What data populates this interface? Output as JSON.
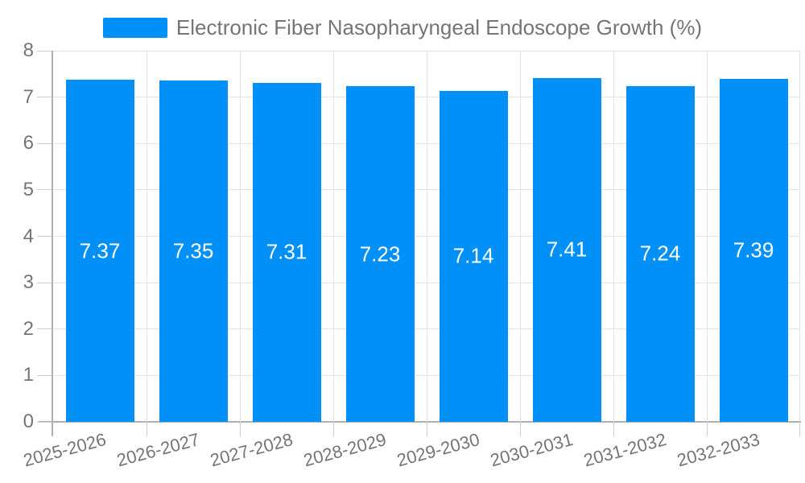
{
  "chart_data": {
    "type": "bar",
    "title": "Electronic Fiber Nasopharyngeal Endoscope Growth (%)",
    "categories": [
      "2025-2026",
      "2026-2027",
      "2027-2028",
      "2028-2029",
      "2029-2030",
      "2030-2031",
      "2031-2032",
      "2032-2033"
    ],
    "values": [
      7.37,
      7.35,
      7.31,
      7.23,
      7.14,
      7.41,
      7.24,
      7.39
    ],
    "value_labels": [
      "7.37",
      "7.35",
      "7.31",
      "7.23",
      "7.14",
      "7.41",
      "7.24",
      "7.39"
    ],
    "xlabel": "",
    "ylabel": "",
    "ylim": [
      0,
      8
    ],
    "yticks": [
      0,
      1,
      2,
      3,
      4,
      5,
      6,
      7,
      8
    ],
    "grid": true,
    "legend_position": "top-center",
    "x_label_rotation_deg": -15,
    "colors": {
      "bar": "#0090f8",
      "grid": "#e3e3e3",
      "axis_line": "#b0b0b0",
      "tick": "#cccccc",
      "axis_text": "#757575",
      "value_label_text": "#ffffff",
      "background": "#ffffff"
    }
  }
}
